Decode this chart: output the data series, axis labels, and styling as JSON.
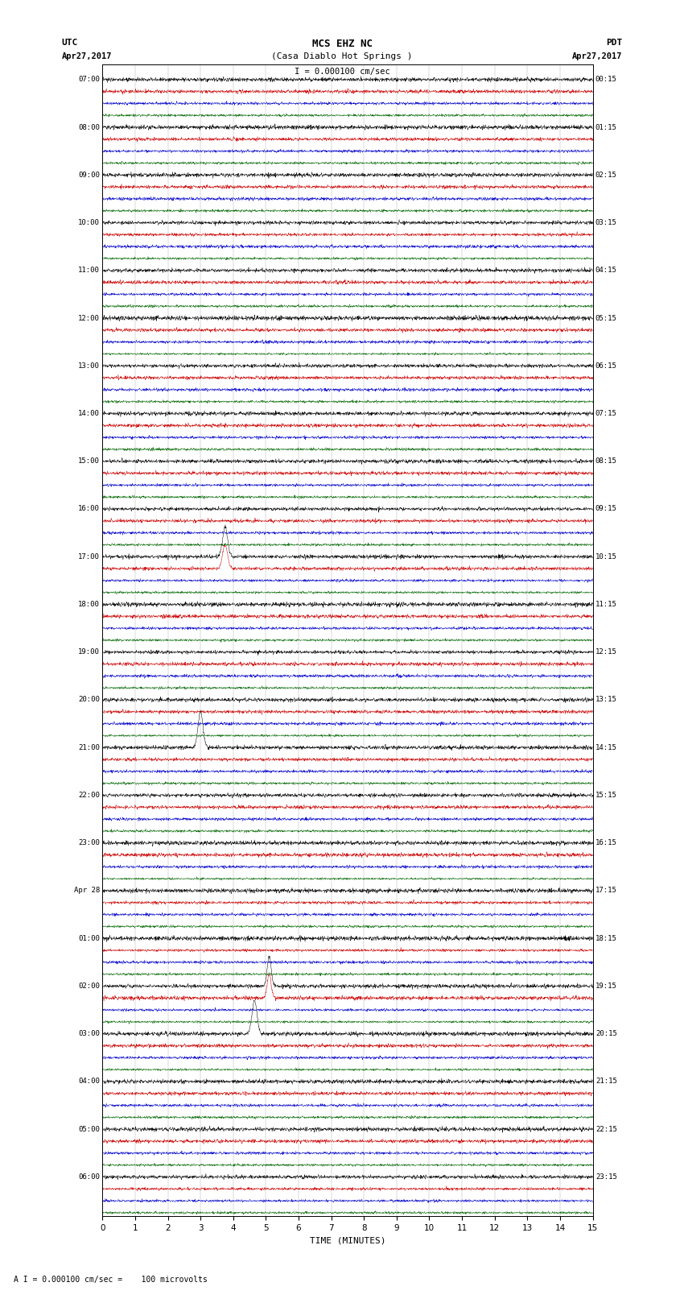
{
  "title_line1": "MCS EHZ NC",
  "title_line2": "(Casa Diablo Hot Springs )",
  "scale_label": "I = 0.000100 cm/sec",
  "bottom_label": "A I = 0.000100 cm/sec =    100 microvolts",
  "utc_label": "UTC",
  "utc_date": "Apr27,2017",
  "pdt_label": "PDT",
  "pdt_date": "Apr27,2017",
  "xlabel": "TIME (MINUTES)",
  "xlim": [
    0,
    15
  ],
  "xticks": [
    0,
    1,
    2,
    3,
    4,
    5,
    6,
    7,
    8,
    9,
    10,
    11,
    12,
    13,
    14,
    15
  ],
  "background_color": "#ffffff",
  "trace_colors": [
    "#000000",
    "#cc0000",
    "#0000cc",
    "#006600"
  ],
  "n_rows": 96,
  "left_times_utc": [
    "07:00",
    "",
    "",
    "",
    "08:00",
    "",
    "",
    "",
    "09:00",
    "",
    "",
    "",
    "10:00",
    "",
    "",
    "",
    "11:00",
    "",
    "",
    "",
    "12:00",
    "",
    "",
    "",
    "13:00",
    "",
    "",
    "",
    "14:00",
    "",
    "",
    "",
    "15:00",
    "",
    "",
    "",
    "16:00",
    "",
    "",
    "",
    "17:00",
    "",
    "",
    "",
    "18:00",
    "",
    "",
    "",
    "19:00",
    "",
    "",
    "",
    "20:00",
    "",
    "",
    "",
    "21:00",
    "",
    "",
    "",
    "22:00",
    "",
    "",
    "",
    "23:00",
    "",
    "",
    "",
    "Apr 28",
    "",
    "",
    "",
    "01:00",
    "",
    "",
    "",
    "02:00",
    "",
    "",
    "",
    "03:00",
    "",
    "",
    "",
    "04:00",
    "",
    "",
    "",
    "05:00",
    "",
    "",
    "",
    "06:00",
    "",
    "",
    ""
  ],
  "right_times_pdt": [
    "00:15",
    "",
    "",
    "",
    "01:15",
    "",
    "",
    "",
    "02:15",
    "",
    "",
    "",
    "03:15",
    "",
    "",
    "",
    "04:15",
    "",
    "",
    "",
    "05:15",
    "",
    "",
    "",
    "06:15",
    "",
    "",
    "",
    "07:15",
    "",
    "",
    "",
    "08:15",
    "",
    "",
    "",
    "09:15",
    "",
    "",
    "",
    "10:15",
    "",
    "",
    "",
    "11:15",
    "",
    "",
    "",
    "12:15",
    "",
    "",
    "",
    "13:15",
    "",
    "",
    "",
    "14:15",
    "",
    "",
    "",
    "15:15",
    "",
    "",
    "",
    "16:15",
    "",
    "",
    "",
    "17:15",
    "",
    "",
    "",
    "18:15",
    "",
    "",
    "",
    "19:15",
    "",
    "",
    "",
    "20:15",
    "",
    "",
    "",
    "21:15",
    "",
    "",
    "",
    "22:15",
    "",
    "",
    "",
    "23:15",
    "",
    "",
    ""
  ],
  "n_minutes": 15,
  "samples_per_trace": 2000,
  "noise_amplitude": 0.28,
  "grid_color": "#888888",
  "grid_linewidth": 0.3
}
